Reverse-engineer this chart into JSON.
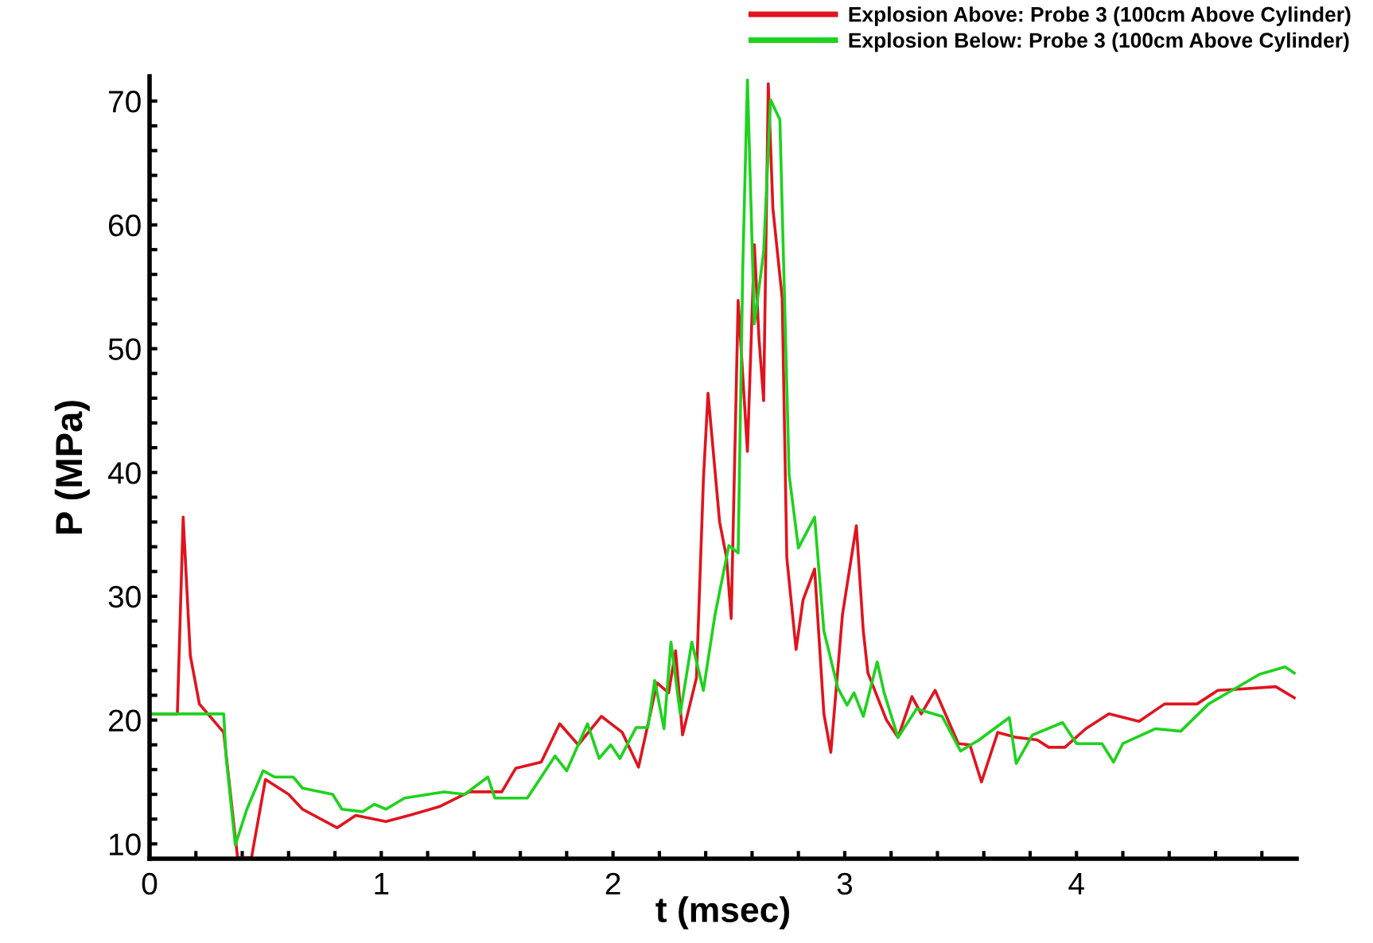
{
  "chart_data": {
    "type": "line",
    "xlabel": "t (msec)",
    "ylabel": "P (MPa)",
    "xlim": [
      0,
      4.95
    ],
    "ylim": [
      8.8,
      72
    ],
    "xticks": [
      0,
      {
        "value": 0.2,
        "label": null
      },
      {
        "value": 0.4,
        "label": null
      },
      {
        "value": 0.6,
        "label": null
      },
      {
        "value": 0.8,
        "label": null
      },
      1,
      {
        "value": 1.2,
        "label": null
      },
      {
        "value": 1.4,
        "label": null
      },
      {
        "value": 1.6,
        "label": null
      },
      {
        "value": 1.8,
        "label": null
      },
      2,
      {
        "value": 2.2,
        "label": null
      },
      {
        "value": 2.4,
        "label": null
      },
      {
        "value": 2.6,
        "label": null
      },
      {
        "value": 2.8,
        "label": null
      },
      3,
      {
        "value": 3.2,
        "label": null
      },
      {
        "value": 3.4,
        "label": null
      },
      {
        "value": 3.6,
        "label": null
      },
      {
        "value": 3.8,
        "label": null
      },
      4,
      {
        "value": 4.2,
        "label": null
      },
      {
        "value": 4.4,
        "label": null
      },
      {
        "value": 4.6,
        "label": null
      },
      {
        "value": 4.8,
        "label": null
      }
    ],
    "yticks": [
      10,
      {
        "value": 12,
        "label": null
      },
      {
        "value": 14,
        "label": null
      },
      {
        "value": 16,
        "label": null
      },
      {
        "value": 18,
        "label": null
      },
      20,
      {
        "value": 22,
        "label": null
      },
      {
        "value": 24,
        "label": null
      },
      {
        "value": 26,
        "label": null
      },
      {
        "value": 28,
        "label": null
      },
      30,
      {
        "value": 32,
        "label": null
      },
      {
        "value": 34,
        "label": null
      },
      {
        "value": 36,
        "label": null
      },
      {
        "value": 38,
        "label": null
      },
      40,
      {
        "value": 42,
        "label": null
      },
      {
        "value": 44,
        "label": null
      },
      {
        "value": 46,
        "label": null
      },
      {
        "value": 48,
        "label": null
      },
      50,
      {
        "value": 52,
        "label": null
      },
      {
        "value": 54,
        "label": null
      },
      {
        "value": 56,
        "label": null
      },
      {
        "value": 58,
        "label": null
      },
      60,
      {
        "value": 62,
        "label": null
      },
      {
        "value": 64,
        "label": null
      },
      {
        "value": 66,
        "label": null
      },
      {
        "value": 68,
        "label": null
      },
      70
    ],
    "grid": false,
    "legend": "top right",
    "marker": "none",
    "line_style": "solid",
    "series": [
      {
        "name": "Explosion Above: Probe 3 (100cm Above Cylinder)",
        "color": "#e0141e",
        "x": [
          0,
          0.12,
          0.145,
          0.176,
          0.215,
          0.32,
          0.37,
          0.38,
          0.44,
          0.5,
          0.6,
          0.66,
          0.81,
          0.89,
          1.02,
          1.12,
          1.25,
          1.38,
          1.52,
          1.58,
          1.69,
          1.77,
          1.85,
          1.95,
          2.04,
          2.11,
          2.19,
          2.24,
          2.27,
          2.3,
          2.36,
          2.39,
          2.41,
          2.46,
          2.49,
          2.51,
          2.54,
          2.58,
          2.61,
          2.63,
          2.65,
          2.67,
          2.69,
          2.73,
          2.75,
          2.79,
          2.82,
          2.87,
          2.91,
          2.94,
          2.99,
          3.05,
          3.08,
          3.1,
          3.18,
          3.23,
          3.29,
          3.33,
          3.39,
          3.49,
          3.54,
          3.59,
          3.66,
          3.74,
          3.83,
          3.88,
          3.95,
          4.04,
          4.14,
          4.27,
          4.38,
          4.52,
          4.61,
          4.7,
          4.86,
          4.94
        ],
        "values": [
          20.5,
          20.5,
          36.4,
          25.2,
          21.3,
          19.0,
          10.5,
          8.9,
          8.9,
          15.2,
          14.0,
          12.8,
          11.3,
          12.3,
          11.8,
          12.3,
          13.0,
          14.2,
          14.2,
          16.1,
          16.6,
          19.7,
          18.0,
          20.3,
          19.0,
          16.2,
          23.0,
          22.2,
          25.6,
          18.8,
          23.4,
          39.4,
          46.4,
          36.0,
          33.1,
          28.2,
          53.9,
          41.7,
          58.4,
          50.8,
          45.8,
          71.4,
          61.3,
          54.1,
          33.1,
          25.7,
          29.7,
          32.2,
          20.5,
          17.4,
          28.5,
          35.7,
          27.2,
          23.8,
          20.0,
          18.6,
          21.9,
          20.5,
          22.4,
          18.1,
          18.0,
          15.0,
          19.0,
          18.6,
          18.4,
          17.8,
          17.8,
          19.3,
          20.5,
          19.9,
          21.3,
          21.3,
          22.4,
          22.5,
          22.7,
          21.8
        ]
      },
      {
        "name": "Explosion Below: Probe 3 (100cm Above Cylinder)",
        "color": "#1ed21e",
        "x": [
          0,
          0.32,
          0.33,
          0.37,
          0.42,
          0.49,
          0.54,
          0.62,
          0.66,
          0.79,
          0.83,
          0.92,
          0.97,
          1.02,
          1.1,
          1.27,
          1.36,
          1.46,
          1.49,
          1.63,
          1.75,
          1.8,
          1.89,
          1.94,
          1.99,
          2.03,
          2.1,
          2.15,
          2.18,
          2.22,
          2.25,
          2.29,
          2.34,
          2.39,
          2.44,
          2.5,
          2.54,
          2.56,
          2.58,
          2.61,
          2.65,
          2.68,
          2.72,
          2.76,
          2.8,
          2.87,
          2.91,
          2.97,
          3.01,
          3.04,
          3.08,
          3.14,
          3.17,
          3.23,
          3.31,
          3.42,
          3.5,
          3.58,
          3.71,
          3.74,
          3.81,
          3.94,
          4.0,
          4.11,
          4.16,
          4.2,
          4.34,
          4.45,
          4.57,
          4.68,
          4.79,
          4.9,
          4.94
        ],
        "values": [
          20.5,
          20.5,
          17.1,
          9.9,
          12.8,
          15.9,
          15.4,
          15.4,
          14.5,
          14.0,
          12.8,
          12.6,
          13.2,
          12.8,
          13.7,
          14.2,
          14.0,
          15.4,
          13.7,
          13.7,
          17.1,
          15.9,
          19.7,
          16.9,
          18.0,
          16.9,
          19.4,
          19.4,
          23.2,
          19.3,
          26.3,
          20.5,
          26.3,
          22.4,
          28.5,
          34.1,
          33.5,
          56.6,
          71.7,
          52.0,
          57.8,
          70.1,
          68.5,
          39.8,
          33.9,
          36.4,
          27.2,
          22.6,
          21.2,
          22.2,
          20.3,
          24.7,
          22.2,
          18.6,
          20.9,
          20.3,
          17.5,
          18.4,
          20.2,
          16.5,
          18.8,
          19.8,
          18.1,
          18.1,
          16.6,
          18.1,
          19.3,
          19.1,
          21.3,
          22.5,
          23.7,
          24.3,
          23.8
        ]
      }
    ]
  }
}
